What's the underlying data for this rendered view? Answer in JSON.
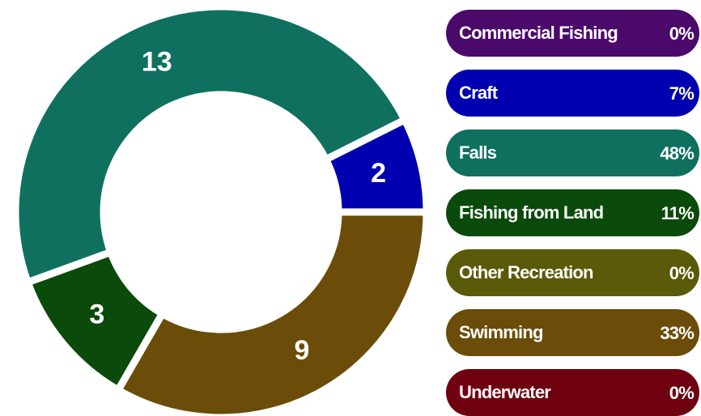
{
  "chart_data": {
    "type": "donut",
    "categories": [
      "Commercial Fishing",
      "Craft",
      "Falls",
      "Fishing from Land",
      "Other Recreation",
      "Swimming",
      "Underwater"
    ],
    "values": [
      0,
      2,
      13,
      3,
      0,
      9,
      0
    ],
    "percent_labels": [
      "0%",
      "7%",
      "48%",
      "11%",
      "0%",
      "33%",
      "0%"
    ],
    "colors": [
      "#4b0a6b",
      "#0000b0",
      "#10705f",
      "#0a4a0a",
      "#5a5a08",
      "#6b4c08",
      "#6e0010"
    ],
    "legend": "right"
  }
}
